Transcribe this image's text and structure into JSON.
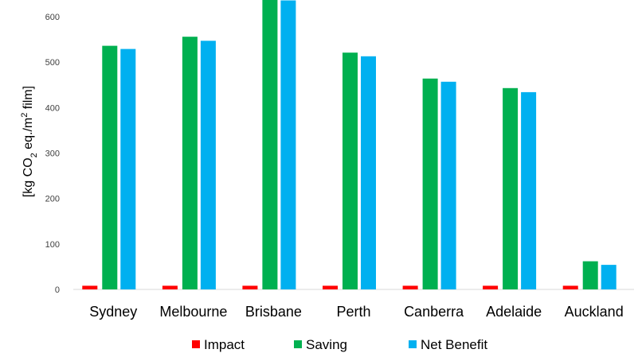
{
  "chart_data": {
    "type": "bar",
    "categories": [
      "Sydney",
      "Melbourne",
      "Brisbane",
      "Perth",
      "Canberra",
      "Adelaide",
      "Auckland"
    ],
    "series": [
      {
        "name": "Impact",
        "color": "#ff0000",
        "values": [
          8,
          8,
          8,
          8,
          8,
          8,
          8
        ]
      },
      {
        "name": "Saving",
        "color": "#00b050",
        "values": [
          536,
          556,
          648,
          521,
          464,
          443,
          62
        ]
      },
      {
        "name": "Net Benefit",
        "color": "#00b0f0",
        "values": [
          529,
          547,
          636,
          513,
          457,
          434,
          54
        ]
      }
    ],
    "ylabel_parts": [
      "[kg CO",
      "2",
      " eq./m",
      "2",
      " film]"
    ],
    "y_ticks": [
      0,
      100,
      200,
      300,
      400,
      500,
      600
    ],
    "ylim": [
      0,
      650
    ],
    "grid": false,
    "legend_position": "bottom"
  }
}
